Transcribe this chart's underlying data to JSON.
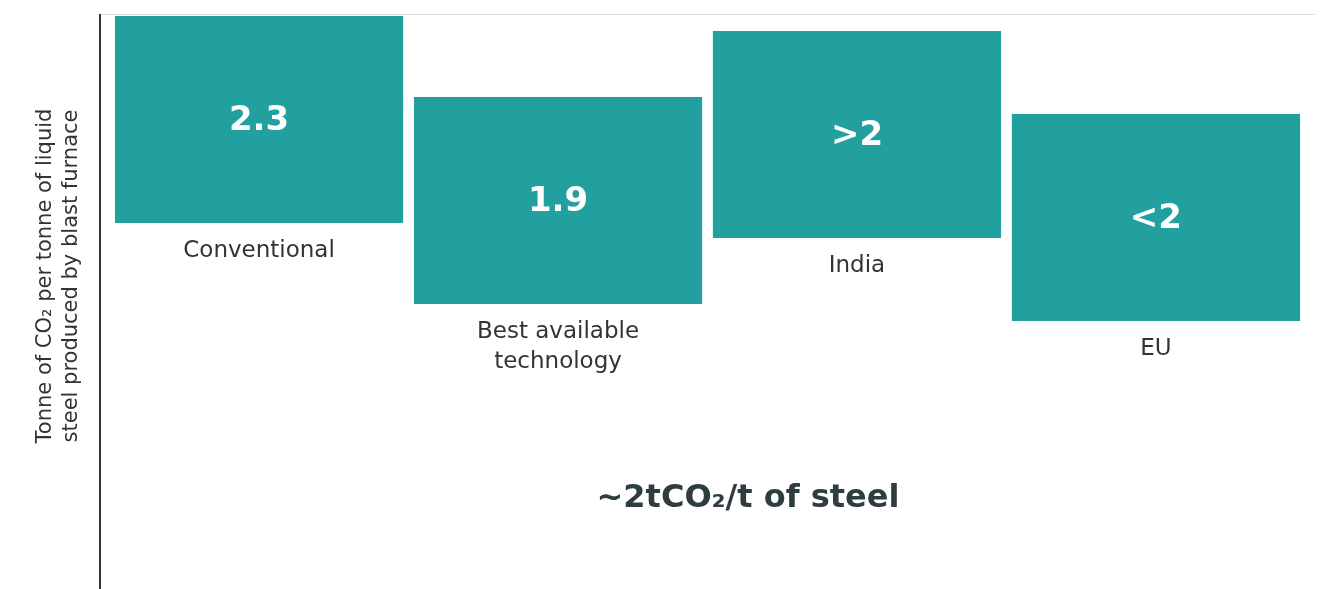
{
  "chart_data": {
    "type": "other",
    "ylabel": "Tonne of CO₂ per tonne of liquid steel produced by blast furnace",
    "categories": [
      "Conventional",
      "Best available technology",
      "India",
      "EU"
    ],
    "values": [
      2.3,
      1.9,
      null,
      null
    ],
    "value_labels": [
      "2.3",
      "1.9",
      ">2",
      "<2"
    ],
    "color": "#22a09f",
    "annotations": [
      "~2tCO₂/t of steel"
    ]
  }
}
